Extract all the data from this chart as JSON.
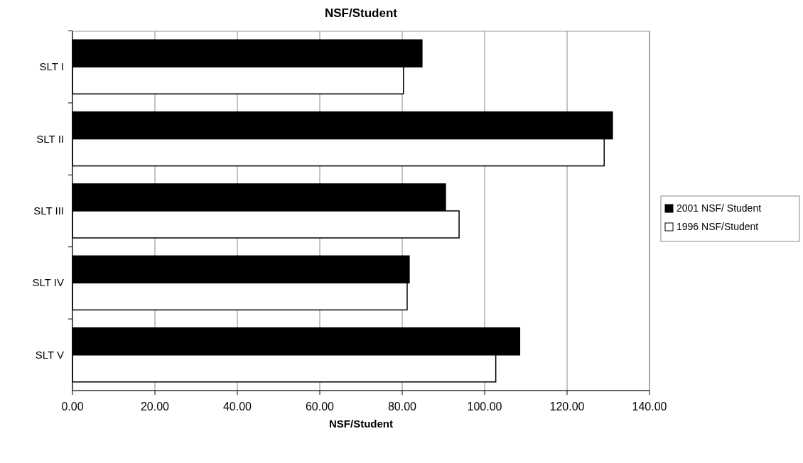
{
  "chart_data": {
    "type": "bar",
    "orientation": "horizontal",
    "title": "NSF/Student",
    "xlabel": "NSF/Student",
    "categories": [
      "SLT I",
      "SLT II",
      "SLT III",
      "SLT IV",
      "SLT V"
    ],
    "series": [
      {
        "name": "2001 NSF/ Student",
        "color": "#000000",
        "values": [
          84.8,
          131.0,
          90.5,
          81.7,
          108.5
        ]
      },
      {
        "name": "1996 NSF/Student",
        "color": "#ffffff",
        "values": [
          80.3,
          129.0,
          93.8,
          81.2,
          102.7
        ]
      }
    ],
    "xlim": [
      0,
      140
    ],
    "xticks": [
      {
        "value": 0,
        "label": "0.00"
      },
      {
        "value": 20,
        "label": "20.00"
      },
      {
        "value": 40,
        "label": "40.00"
      },
      {
        "value": 60,
        "label": "60.00"
      },
      {
        "value": 80,
        "label": "80.00"
      },
      {
        "value": 100,
        "label": "100.00"
      },
      {
        "value": 120,
        "label": "120.00"
      },
      {
        "value": 140,
        "label": "140.00"
      }
    ],
    "grid": "x",
    "legend": "right"
  }
}
